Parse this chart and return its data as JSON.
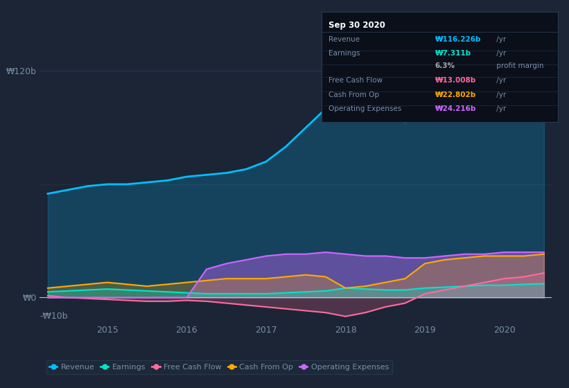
{
  "background_color": "#1b2535",
  "plot_bg_color": "#1b2535",
  "ylim": [
    -13,
    135
  ],
  "x_years": [
    2014.25,
    2014.5,
    2014.75,
    2015,
    2015.25,
    2015.5,
    2015.75,
    2016,
    2016.25,
    2016.5,
    2016.75,
    2017,
    2017.25,
    2017.5,
    2017.75,
    2018,
    2018.25,
    2018.5,
    2018.75,
    2019,
    2019.25,
    2019.5,
    2019.75,
    2020,
    2020.25,
    2020.5
  ],
  "revenue": [
    55,
    57,
    59,
    60,
    60,
    61,
    62,
    64,
    65,
    66,
    68,
    72,
    80,
    90,
    100,
    106,
    100,
    95,
    93,
    95,
    97,
    100,
    105,
    110,
    114,
    116
  ],
  "earnings": [
    3,
    3.5,
    4,
    4.5,
    4,
    3.5,
    3,
    2.5,
    2,
    2,
    2,
    2,
    2.5,
    3,
    3.5,
    5,
    4.5,
    4,
    4,
    5,
    5.5,
    6,
    6.5,
    6.5,
    7,
    7.3
  ],
  "free_cash_flow": [
    1,
    0,
    -0.5,
    -1,
    -1.5,
    -2,
    -2,
    -1.5,
    -2,
    -3,
    -4,
    -5,
    -6,
    -7,
    -8,
    -10,
    -8,
    -5,
    -3,
    2,
    4,
    6,
    8,
    10,
    11,
    13
  ],
  "cash_from_op": [
    5,
    6,
    7,
    8,
    7,
    6,
    7,
    8,
    9,
    10,
    10,
    10,
    11,
    12,
    11,
    5,
    6,
    8,
    10,
    18,
    20,
    21,
    22,
    22,
    22,
    23
  ],
  "operating_expenses": [
    0,
    0,
    0,
    0,
    0,
    0,
    0,
    0,
    15,
    18,
    20,
    22,
    23,
    23,
    24,
    23,
    22,
    22,
    21,
    21,
    22,
    23,
    23,
    24,
    24,
    24
  ],
  "revenue_color": "#00bfff",
  "earnings_color": "#00e5cc",
  "free_cash_flow_color": "#ff6b9d",
  "cash_from_op_color": "#ffaa00",
  "operating_expenses_color": "#cc66ff",
  "legend_bg": "#1e2b3a",
  "tooltip_bg": "#0a0f1a",
  "grid_color": "#2e3f52",
  "text_color": "#7a8fa8",
  "zero_line_color": "#c0c0d0",
  "tooltip_title": "Sep 30 2020",
  "tooltip_rows": [
    {
      "label": "Revenue",
      "value": "₩116.226b",
      "suffix": " /yr",
      "color": "#00bfff"
    },
    {
      "label": "Earnings",
      "value": "₩7.311b",
      "suffix": " /yr",
      "color": "#00e5cc"
    },
    {
      "label": "",
      "value": "6.3%",
      "suffix": " profit margin",
      "color": "#aaaaaa"
    },
    {
      "label": "Free Cash Flow",
      "value": "₩13.008b",
      "suffix": " /yr",
      "color": "#ff6b9d"
    },
    {
      "label": "Cash From Op",
      "value": "₩22.802b",
      "suffix": " /yr",
      "color": "#ffaa00"
    },
    {
      "label": "Operating Expenses",
      "value": "₩24.216b",
      "suffix": " /yr",
      "color": "#cc66ff"
    }
  ],
  "legend_labels": [
    "Revenue",
    "Earnings",
    "Free Cash Flow",
    "Cash From Op",
    "Operating Expenses"
  ],
  "legend_colors": [
    "#00bfff",
    "#00e5cc",
    "#ff6b9d",
    "#ffaa00",
    "#cc66ff"
  ]
}
